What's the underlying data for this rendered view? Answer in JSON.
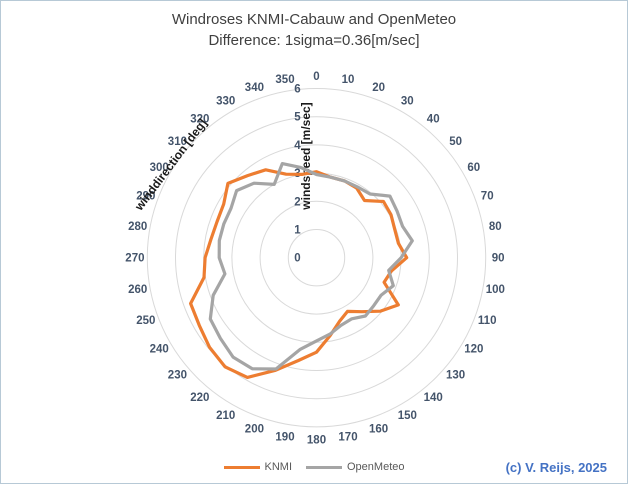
{
  "title": {
    "line1": "Windroses KNMI-Cabauw and OpenMeteo",
    "line2": "Difference: 1sigma=0.36[m/sec]"
  },
  "chart_data": {
    "type": "line",
    "subtype": "radar-polar",
    "angular_axis": {
      "label": "winddirection [deg]",
      "start": 0,
      "end": 350,
      "step": 10
    },
    "radial_axis": {
      "label": "windspeed [m/sec]",
      "min": 0,
      "max": 6,
      "step": 1
    },
    "angles": [
      0,
      10,
      20,
      30,
      40,
      50,
      60,
      70,
      80,
      90,
      100,
      110,
      120,
      130,
      140,
      150,
      160,
      170,
      180,
      190,
      200,
      210,
      220,
      230,
      240,
      250,
      260,
      270,
      280,
      290,
      300,
      310,
      320,
      330,
      340,
      350
    ],
    "series": [
      {
        "name": "KNMI",
        "color": "#ED7D31",
        "values": [
          3.05,
          2.9,
          2.9,
          2.85,
          2.65,
          3.1,
          3.05,
          2.95,
          2.95,
          3.2,
          2.7,
          2.55,
          3.35,
          2.95,
          2.5,
          2.2,
          2.4,
          2.8,
          3.35,
          3.7,
          4.25,
          4.9,
          5.05,
          4.95,
          4.8,
          4.75,
          4.05,
          3.95,
          3.8,
          3.75,
          3.8,
          4.1,
          3.8,
          3.6,
          3.15,
          3.0
        ]
      },
      {
        "name": "OpenMeteo",
        "color": "#A5A5A5",
        "values": [
          2.95,
          2.9,
          2.9,
          2.9,
          2.95,
          3.4,
          3.3,
          3.25,
          3.45,
          3.0,
          2.6,
          2.9,
          2.65,
          2.65,
          2.7,
          2.5,
          2.55,
          2.75,
          2.95,
          3.3,
          4.2,
          4.55,
          4.6,
          4.45,
          4.35,
          3.9,
          3.3,
          3.45,
          3.5,
          3.5,
          3.5,
          3.7,
          3.45,
          3.0,
          3.55,
          3.25
        ]
      }
    ],
    "grid": true,
    "grid_color": "#D9D9D9",
    "tick_label_color": "#44546A",
    "axis_title_color": "#1a1a1a",
    "legend_position": "bottom"
  },
  "legend": {
    "items": [
      {
        "label": "KNMI",
        "color": "#ED7D31"
      },
      {
        "label": "OpenMeteo",
        "color": "#A5A5A5"
      }
    ]
  },
  "footer": {
    "credit": "(c) V. Reijs, 2025",
    "color": "#4472C4"
  }
}
